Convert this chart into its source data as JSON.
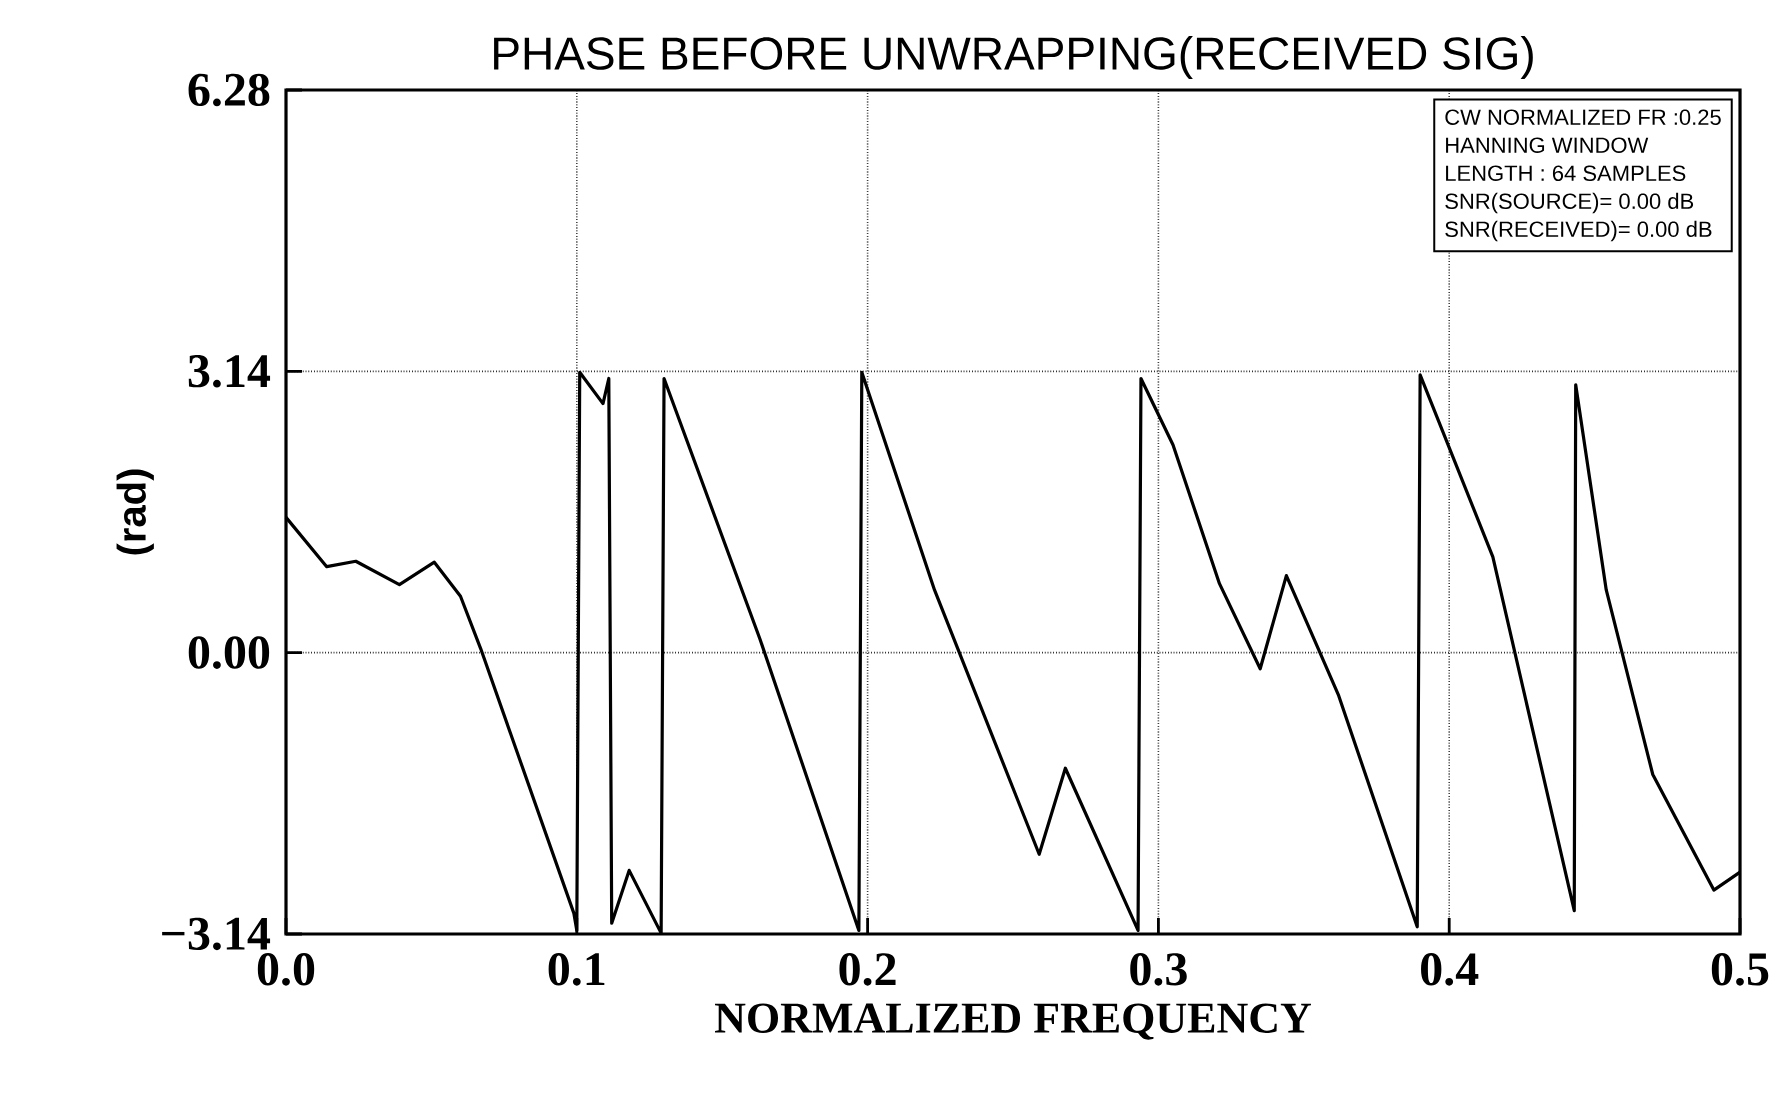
{
  "chart_data": {
    "type": "line",
    "title": "PHASE BEFORE UNWRAPPING(RECEIVED SIG)",
    "xlabel": "NORMALIZED FREQUENCY",
    "ylabel": "(rad)",
    "annotations": [
      "CW NORMALIZED FR :0.25",
      "HANNING WINDOW",
      "LENGTH : 64 SAMPLES",
      "SNR(SOURCE)=  0.00 dB",
      "SNR(RECEIVED)=  0.00 dB"
    ],
    "xlim": [
      0,
      0.5
    ],
    "xticks": [
      {
        "value": 0,
        "label": "0.0"
      },
      {
        "value": 0.1,
        "label": "0.1"
      },
      {
        "value": 0.2,
        "label": "0.2"
      },
      {
        "value": 0.3,
        "label": "0.3"
      },
      {
        "value": 0.4,
        "label": "0.4"
      },
      {
        "value": 0.5,
        "label": "0.5"
      }
    ],
    "ylim": [
      -3.14,
      6.28
    ],
    "yticks": [
      {
        "value": -3.14,
        "label": "−3.14"
      },
      {
        "value": 0,
        "label": "0.00"
      },
      {
        "value": 3.14,
        "label": "3.14"
      },
      {
        "value": 6.28,
        "label": "6.28"
      }
    ],
    "grid": true,
    "marker": "none",
    "line_style": "solid",
    "series": [
      {
        "color": "#000000",
        "x": [
          0,
          0.014,
          0.024,
          0.039,
          0.051,
          0.06,
          0.067,
          0.099,
          0.1,
          0.101,
          0.109,
          0.111,
          0.112,
          0.118,
          0.129,
          0.13,
          0.163,
          0.197,
          0.198,
          0.223,
          0.259,
          0.268,
          0.293,
          0.294,
          0.305,
          0.321,
          0.335,
          0.344,
          0.362,
          0.389,
          0.39,
          0.415,
          0.443,
          0.4435,
          0.454,
          0.47,
          0.491,
          0.5
        ],
        "values": [
          1.51,
          0.96,
          1.02,
          0.76,
          1.01,
          0.63,
          0.04,
          -2.91,
          -3.1,
          3.13,
          2.78,
          3.06,
          -3.02,
          -2.43,
          -3.13,
          3.06,
          0.15,
          -3.1,
          3.13,
          0.7,
          -2.25,
          -1.29,
          -3.1,
          3.06,
          2.32,
          0.77,
          -0.18,
          0.86,
          -0.48,
          -3.06,
          3.1,
          1.07,
          -2.88,
          2.99,
          0.7,
          -1.36,
          -2.65,
          -2.45
        ]
      }
    ]
  }
}
